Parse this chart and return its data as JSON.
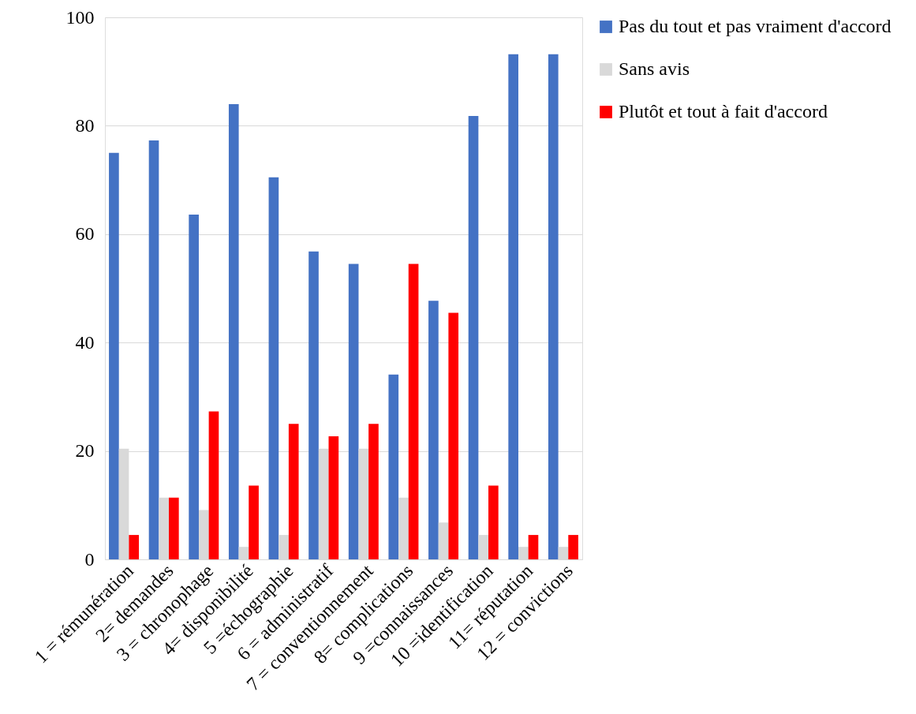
{
  "chart_data": {
    "type": "bar",
    "categories": [
      "1 = rémunération",
      "2= demandes",
      "3 = chronophage",
      "4= disponibilité",
      "5 =échographie",
      "6 = administratif",
      "7 = conventionnement",
      "8= complications",
      "9 =connaissances",
      "10 =identification",
      "11= réputation",
      "12 = convictions"
    ],
    "series": [
      {
        "name": "Pas du tout et pas vraiment d'accord",
        "color": "#4472c4",
        "values": [
          75,
          77.3,
          63.6,
          84,
          70.5,
          56.8,
          54.5,
          34.1,
          47.7,
          81.8,
          93.2,
          93.2
        ]
      },
      {
        "name": "Sans avis",
        "color": "#d9d9d9",
        "values": [
          20.4,
          11.4,
          9.1,
          2.3,
          4.5,
          20.4,
          20.4,
          11.4,
          6.8,
          4.5,
          2.3,
          2.3
        ]
      },
      {
        "name": "Plutôt et tout à fait d'accord",
        "color": "#ff0000",
        "values": [
          4.5,
          11.4,
          27.3,
          13.6,
          25,
          22.7,
          25,
          54.5,
          45.5,
          13.6,
          4.5,
          4.5
        ]
      }
    ],
    "ylim": [
      0,
      100
    ],
    "yticks": [
      0,
      20,
      40,
      60,
      80,
      100
    ],
    "grid": "y",
    "legend": "right"
  }
}
